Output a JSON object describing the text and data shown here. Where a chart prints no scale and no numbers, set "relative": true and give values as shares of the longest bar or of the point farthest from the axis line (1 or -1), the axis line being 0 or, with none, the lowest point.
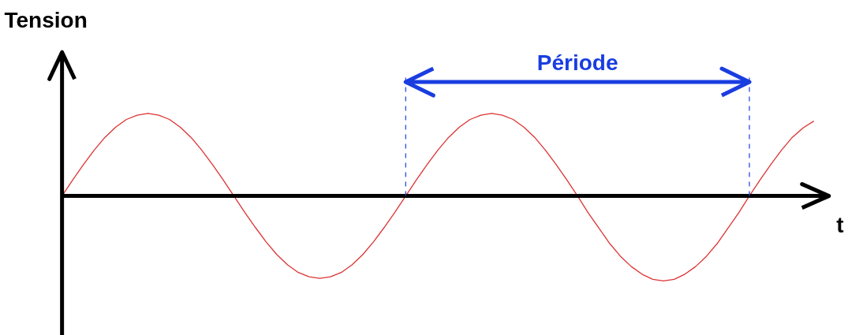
{
  "chart_data": {
    "type": "line",
    "relative": true,
    "xlabel": "t",
    "ylabel": "Tension",
    "tick_labels": false,
    "categories": [
      null,
      null,
      null,
      null,
      null,
      null,
      null,
      null,
      null,
      null,
      null,
      null,
      null,
      null,
      null,
      null,
      null,
      null,
      null,
      null,
      null,
      null,
      null,
      null,
      null,
      null,
      null,
      null,
      null,
      null,
      null,
      null,
      null,
      null,
      null,
      null,
      null,
      null,
      null,
      null,
      null,
      null,
      null,
      null,
      null,
      null,
      null,
      null,
      null,
      null,
      null,
      null,
      null,
      null,
      null,
      null,
      null,
      null,
      null,
      null,
      null,
      null,
      null,
      null,
      null,
      null,
      null,
      null,
      null,
      null,
      null
    ],
    "series": [
      {
        "color": "#dd3333",
        "values": [
          0,
          0.19,
          0.37,
          0.54,
          0.69,
          0.81,
          0.9,
          0.95,
          0.97,
          0.95,
          0.9,
          0.81,
          0.69,
          0.54,
          0.37,
          0.19,
          0,
          -0.19,
          -0.37,
          -0.54,
          -0.69,
          -0.81,
          -0.9,
          -0.95,
          -0.97,
          -0.95,
          -0.9,
          -0.81,
          -0.69,
          -0.54,
          -0.37,
          -0.19,
          0,
          0.19,
          0.37,
          0.54,
          0.69,
          0.81,
          0.9,
          0.95,
          0.97,
          0.95,
          0.9,
          0.81,
          0.69,
          0.54,
          0.37,
          0.19,
          0,
          -0.2,
          -0.38,
          -0.56,
          -0.71,
          -0.83,
          -0.92,
          -0.98,
          -1,
          -0.98,
          -0.92,
          -0.83,
          -0.71,
          -0.56,
          -0.38,
          -0.2,
          0,
          0.19,
          0.37,
          0.54,
          0.69,
          0.8,
          0.88
        ]
      }
    ],
    "ref_lines": [
      {
        "axis": "y",
        "value": 0,
        "color": "#000000"
      }
    ],
    "annotations": [
      "Période"
    ]
  }
}
